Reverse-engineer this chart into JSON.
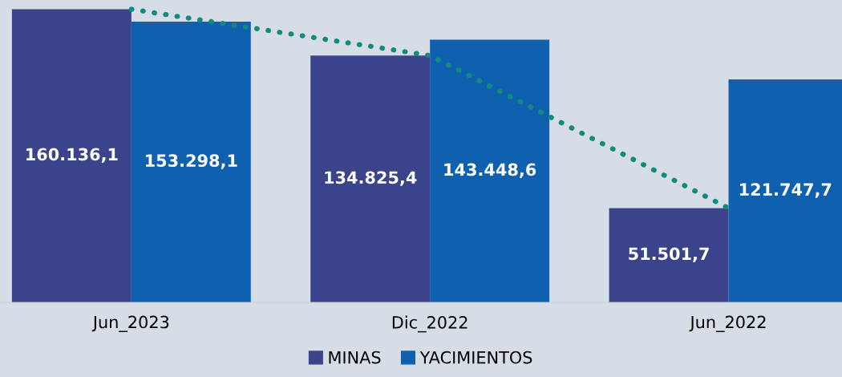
{
  "chart_data": {
    "type": "bar",
    "categories": [
      "Jun_2023",
      "Dic_2022",
      "Jun_2022"
    ],
    "series": [
      {
        "name": "MINAS",
        "color": "#3b448b",
        "values": [
          160136.1,
          134825.4,
          51501.7
        ],
        "value_labels": [
          "160.136,1",
          "134.825,4",
          "51.501,7"
        ]
      },
      {
        "name": "YACIMIENTOS",
        "color": "#1060b0",
        "values": [
          153298.1,
          143448.6,
          121747.7
        ],
        "value_labels": [
          "153.298,1",
          "143.448,6",
          "121.747,7"
        ]
      },
      {
        "type": "line",
        "color": "#138a7e",
        "values": [
          160136.1,
          134825.4,
          51501.7
        ],
        "line_style": "dotted"
      }
    ],
    "legend": "bottom",
    "grid": false
  }
}
